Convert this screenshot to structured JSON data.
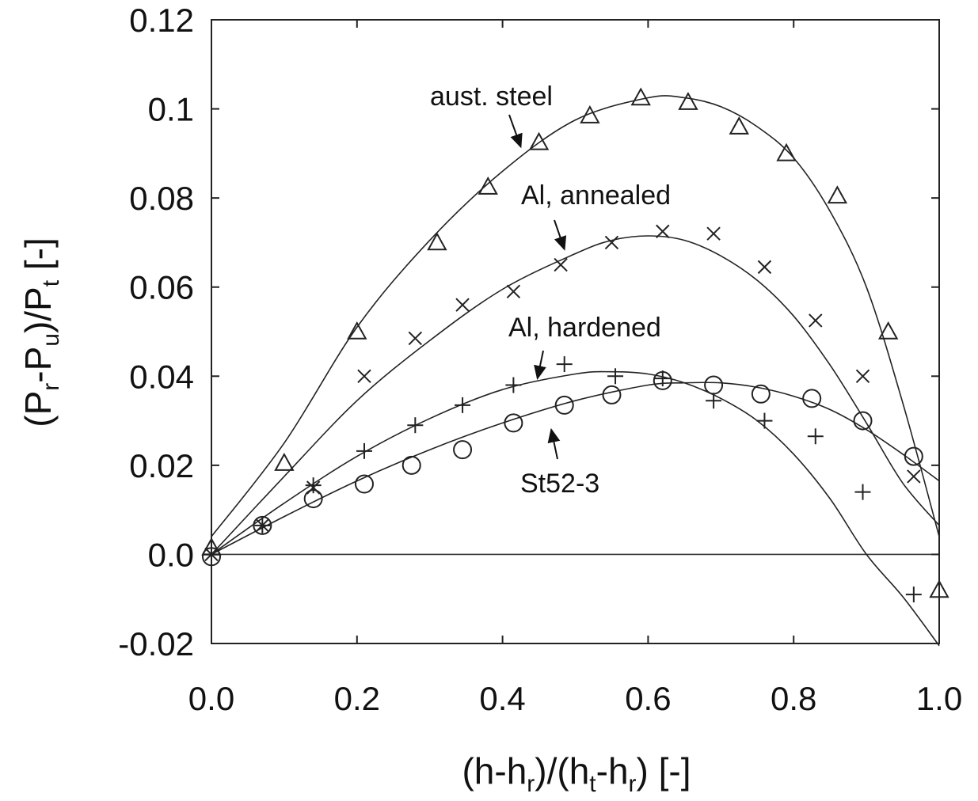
{
  "chart_data": {
    "type": "scatter",
    "xlabel_parts": [
      "(h-h",
      "r",
      ")/(h",
      "t",
      "-h",
      "r",
      ") [-]"
    ],
    "ylabel_parts": [
      "(P",
      "r",
      "-P",
      "u",
      ")/P",
      "t",
      " [-]"
    ],
    "xlim": [
      0.0,
      1.0
    ],
    "ylim": [
      -0.02,
      0.12
    ],
    "xticks": [
      0.0,
      0.2,
      0.4,
      0.6,
      0.8,
      1.0
    ],
    "xtick_labels": [
      "0.0",
      "0.2",
      "0.4",
      "0.6",
      "0.8",
      "1.0"
    ],
    "yticks": [
      -0.02,
      0.0,
      0.02,
      0.04,
      0.06,
      0.08,
      0.1,
      0.12
    ],
    "ytick_labels": [
      "-0.02",
      "0.0",
      "0.02",
      "0.04",
      "0.06",
      "0.08",
      "0.1",
      "0.12"
    ],
    "zero_line": true,
    "grid": false,
    "series": [
      {
        "name": "aust. steel",
        "marker": "triangle",
        "x": [
          0.0,
          0.1,
          0.2,
          0.31,
          0.38,
          0.45,
          0.52,
          0.59,
          0.655,
          0.725,
          0.79,
          0.86,
          0.93,
          1.0
        ],
        "y": [
          0.0015,
          0.0205,
          0.05,
          0.07,
          0.0825,
          0.0925,
          0.0985,
          0.1025,
          0.1015,
          0.096,
          0.09,
          0.0805,
          0.05,
          -0.008
        ],
        "fit_x": [
          0.0,
          0.1,
          0.2,
          0.3,
          0.4,
          0.5,
          0.6,
          0.65,
          0.7,
          0.75,
          0.8,
          0.85,
          0.9,
          0.95,
          1.0
        ],
        "fit_y": [
          0.004,
          0.025,
          0.051,
          0.0705,
          0.086,
          0.0975,
          0.1025,
          0.1025,
          0.1005,
          0.096,
          0.089,
          0.077,
          0.06,
          0.034,
          0.004
        ]
      },
      {
        "name": "Al, annealed",
        "marker": "cross",
        "x": [
          0.0,
          0.07,
          0.14,
          0.21,
          0.28,
          0.345,
          0.415,
          0.48,
          0.55,
          0.62,
          0.69,
          0.76,
          0.83,
          0.895,
          0.965
        ],
        "y": [
          0.0,
          0.0065,
          0.015,
          0.04,
          0.0485,
          0.056,
          0.059,
          0.065,
          0.07,
          0.0725,
          0.072,
          0.0645,
          0.0525,
          0.04,
          0.0175
        ],
        "fit_x": [
          0.0,
          0.1,
          0.2,
          0.3,
          0.4,
          0.5,
          0.55,
          0.6,
          0.65,
          0.7,
          0.75,
          0.8,
          0.85,
          0.9,
          0.95,
          1.0
        ],
        "fit_y": [
          0.0,
          0.0175,
          0.0345,
          0.048,
          0.0595,
          0.0675,
          0.0705,
          0.0715,
          0.0705,
          0.067,
          0.0615,
          0.0535,
          0.0425,
          0.0295,
          0.016,
          0.0065
        ]
      },
      {
        "name": "Al, hardened",
        "marker": "plus",
        "x": [
          0.0,
          0.07,
          0.14,
          0.21,
          0.28,
          0.345,
          0.415,
          0.485,
          0.555,
          0.62,
          0.69,
          0.76,
          0.83,
          0.895,
          0.965
        ],
        "y": [
          0.0,
          0.0065,
          0.0155,
          0.0232,
          0.029,
          0.0335,
          0.038,
          0.0427,
          0.04,
          0.0395,
          0.0345,
          0.03,
          0.0265,
          0.014,
          -0.009
        ],
        "fit_x": [
          0.0,
          0.1,
          0.2,
          0.3,
          0.4,
          0.5,
          0.55,
          0.6,
          0.65,
          0.7,
          0.75,
          0.8,
          0.85,
          0.9,
          0.95,
          1.0
        ],
        "fit_y": [
          0.0,
          0.0115,
          0.022,
          0.0305,
          0.037,
          0.0405,
          0.041,
          0.0405,
          0.0385,
          0.035,
          0.03,
          0.0225,
          0.0125,
          0.0,
          -0.0095,
          -0.0205
        ]
      },
      {
        "name": "St52-3",
        "marker": "circle",
        "x": [
          0.0,
          0.07,
          0.14,
          0.21,
          0.275,
          0.345,
          0.415,
          0.485,
          0.55,
          0.62,
          0.69,
          0.755,
          0.825,
          0.895,
          0.965
        ],
        "y": [
          -0.0005,
          0.0065,
          0.0125,
          0.0158,
          0.02,
          0.0235,
          0.0295,
          0.0335,
          0.0358,
          0.039,
          0.038,
          0.036,
          0.035,
          0.03,
          0.022
        ],
        "fit_x": [
          0.0,
          0.1,
          0.2,
          0.3,
          0.4,
          0.5,
          0.6,
          0.65,
          0.7,
          0.75,
          0.8,
          0.85,
          0.9,
          0.95,
          1.0
        ],
        "fit_y": [
          0.0,
          0.0085,
          0.0165,
          0.0235,
          0.0295,
          0.0345,
          0.038,
          0.0385,
          0.0385,
          0.0375,
          0.0355,
          0.0325,
          0.028,
          0.0225,
          0.0165
        ]
      }
    ],
    "annotations": [
      {
        "text": "aust. steel",
        "target": [
          0.425,
          0.0915
        ]
      },
      {
        "text": "Al, annealed",
        "target": [
          0.485,
          0.0685
        ]
      },
      {
        "text": "Al, hardened",
        "target": [
          0.448,
          0.0395
        ]
      },
      {
        "text": "St52-3",
        "target": [
          0.467,
          0.028
        ]
      }
    ]
  }
}
